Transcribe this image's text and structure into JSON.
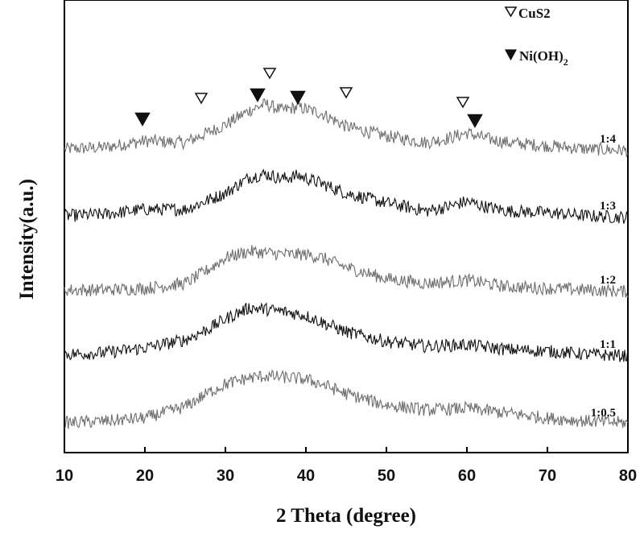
{
  "chart_data": {
    "type": "line",
    "xlabel": "2 Theta (degree)",
    "ylabel": "Intensity(a.u.)",
    "xlim": [
      10,
      80
    ],
    "x_ticks": [
      10,
      20,
      30,
      40,
      50,
      60,
      70,
      80
    ],
    "y_ticks_shown": false,
    "grid": false,
    "colors": {
      "black": "#111111",
      "gray": "#6e6e6e",
      "axis": "#000000"
    },
    "series": [
      {
        "name": "1:4",
        "color": "gray",
        "baseline": 0.85,
        "points": [
          [
            10,
            0.0
          ],
          [
            15,
            0.2
          ],
          [
            20,
            1.0
          ],
          [
            25,
            0.8
          ],
          [
            30,
            3.0
          ],
          [
            33,
            4.8
          ],
          [
            35,
            5.6
          ],
          [
            37,
            4.8
          ],
          [
            39,
            5.2
          ],
          [
            42,
            4.4
          ],
          [
            45,
            2.8
          ],
          [
            50,
            1.6
          ],
          [
            55,
            0.8
          ],
          [
            58,
            1.4
          ],
          [
            60,
            2.0
          ],
          [
            62,
            1.4
          ],
          [
            65,
            0.8
          ],
          [
            70,
            0.4
          ],
          [
            75,
            0.0
          ],
          [
            80,
            -0.2
          ]
        ]
      },
      {
        "name": "1:3",
        "color": "black",
        "baseline": 0.0,
        "points": [
          [
            10,
            0.0
          ],
          [
            15,
            0.2
          ],
          [
            20,
            0.8
          ],
          [
            25,
            0.8
          ],
          [
            30,
            2.8
          ],
          [
            33,
            4.8
          ],
          [
            35,
            5.2
          ],
          [
            37,
            4.6
          ],
          [
            39,
            5.0
          ],
          [
            42,
            4.0
          ],
          [
            45,
            2.8
          ],
          [
            50,
            1.6
          ],
          [
            55,
            0.6
          ],
          [
            58,
            1.2
          ],
          [
            60,
            1.8
          ],
          [
            62,
            1.2
          ],
          [
            65,
            0.6
          ],
          [
            70,
            0.4
          ],
          [
            75,
            0.0
          ],
          [
            80,
            -0.2
          ]
        ]
      },
      {
        "name": "1:2",
        "color": "gray",
        "baseline": 0.0,
        "points": [
          [
            10,
            0.0
          ],
          [
            15,
            0.0
          ],
          [
            20,
            0.2
          ],
          [
            25,
            0.8
          ],
          [
            28,
            2.6
          ],
          [
            30,
            4.0
          ],
          [
            33,
            4.8
          ],
          [
            35,
            4.6
          ],
          [
            38,
            4.4
          ],
          [
            40,
            4.4
          ],
          [
            42,
            4.0
          ],
          [
            45,
            2.8
          ],
          [
            50,
            1.4
          ],
          [
            55,
            0.8
          ],
          [
            60,
            1.2
          ],
          [
            65,
            0.4
          ],
          [
            70,
            0.2
          ],
          [
            75,
            0.0
          ],
          [
            80,
            -0.2
          ]
        ]
      },
      {
        "name": "1:1",
        "color": "black",
        "baseline": 0.0,
        "points": [
          [
            10,
            0.0
          ],
          [
            15,
            0.2
          ],
          [
            20,
            0.8
          ],
          [
            25,
            1.8
          ],
          [
            28,
            3.2
          ],
          [
            30,
            4.4
          ],
          [
            33,
            5.8
          ],
          [
            35,
            5.6
          ],
          [
            38,
            5.2
          ],
          [
            40,
            4.8
          ],
          [
            42,
            4.0
          ],
          [
            45,
            2.8
          ],
          [
            50,
            1.6
          ],
          [
            55,
            1.0
          ],
          [
            60,
            1.2
          ],
          [
            65,
            0.6
          ],
          [
            70,
            0.4
          ],
          [
            75,
            0.0
          ],
          [
            80,
            -0.2
          ]
        ]
      },
      {
        "name": "1:0.5",
        "color": "gray",
        "baseline": 0.0,
        "points": [
          [
            10,
            0.0
          ],
          [
            15,
            0.2
          ],
          [
            20,
            0.6
          ],
          [
            25,
            2.0
          ],
          [
            28,
            3.8
          ],
          [
            30,
            4.8
          ],
          [
            33,
            5.6
          ],
          [
            35,
            5.8
          ],
          [
            38,
            5.6
          ],
          [
            40,
            5.4
          ],
          [
            42,
            4.8
          ],
          [
            45,
            3.6
          ],
          [
            50,
            2.2
          ],
          [
            55,
            1.6
          ],
          [
            60,
            1.8
          ],
          [
            65,
            1.2
          ],
          [
            70,
            0.6
          ],
          [
            75,
            0.2
          ],
          [
            80,
            0.0
          ]
        ]
      }
    ],
    "markers": [
      {
        "type": "open",
        "x": 27,
        "label": "CuS2",
        "level": "low"
      },
      {
        "type": "open",
        "x": 35.5,
        "label": "CuS2",
        "level": "high"
      },
      {
        "type": "open",
        "x": 45,
        "label": "CuS2",
        "level": "mid"
      },
      {
        "type": "open",
        "x": 59.5,
        "label": "CuS2",
        "level": "low"
      },
      {
        "type": "filled",
        "x": 19.7,
        "label": "Ni(OH)2",
        "level": "low"
      },
      {
        "type": "filled",
        "x": 34,
        "label": "Ni(OH)2",
        "level": "mid"
      },
      {
        "type": "filled",
        "x": 39,
        "label": "Ni(OH)2",
        "level": "mid"
      },
      {
        "type": "filled",
        "x": 61,
        "label": "Ni(OH)2",
        "level": "low"
      }
    ],
    "legend": {
      "placement": "top-right",
      "entries": [
        {
          "symbol": "open-down-triangle",
          "text": "CuS2"
        },
        {
          "symbol": "filled-down-triangle",
          "text": "Ni(OH)",
          "subscript": "2"
        }
      ]
    }
  }
}
